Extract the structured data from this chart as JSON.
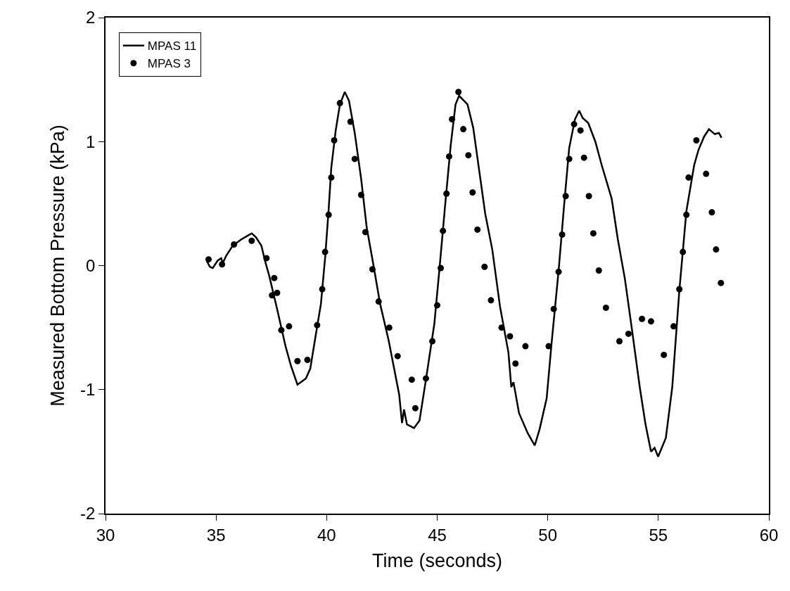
{
  "chart_data": {
    "type": "line",
    "xlabel": "Time (seconds)",
    "ylabel": "Measured Bottom Pressure (kPa)",
    "xlim": [
      30,
      60
    ],
    "xticks": [
      30,
      35,
      40,
      45,
      50,
      55,
      60
    ],
    "ylim": [
      -2,
      2
    ],
    "yticks": [
      -2,
      -1,
      0,
      1,
      2
    ],
    "legend": "top left",
    "series": [
      {
        "name": "MPAS 11",
        "color": "#000000",
        "line_style": "solid",
        "marker": "none",
        "x": [
          34.57,
          34.72,
          34.85,
          35.07,
          35.23,
          35.3,
          35.46,
          35.75,
          36.13,
          36.42,
          36.61,
          36.8,
          37.05,
          37.21,
          37.4,
          37.76,
          38.14,
          38.39,
          38.68,
          39.06,
          39.26,
          39.48,
          39.74,
          39.93,
          40.09,
          40.21,
          40.41,
          40.6,
          40.82,
          41.01,
          41.27,
          41.56,
          41.81,
          42.13,
          42.42,
          42.8,
          43.15,
          43.28,
          43.41,
          43.5,
          43.63,
          43.95,
          44.2,
          44.49,
          44.87,
          45.1,
          45.35,
          45.61,
          45.83,
          45.99,
          46.37,
          46.63,
          46.92,
          47.17,
          47.49,
          47.84,
          48.22,
          48.35,
          48.45,
          48.7,
          49.09,
          49.41,
          49.63,
          49.95,
          50.17,
          50.49,
          50.75,
          50.97,
          51.23,
          51.42,
          51.58,
          51.83,
          52.15,
          52.44,
          52.89,
          53.17,
          53.49,
          53.81,
          54.16,
          54.42,
          54.67,
          54.83,
          54.99,
          55.34,
          55.63,
          55.95,
          56.27,
          56.62,
          56.81,
          57.07,
          57.29,
          57.55,
          57.74,
          57.86
        ],
        "values": [
          0.04,
          -0.01,
          -0.02,
          0.04,
          0.06,
          0.02,
          0.08,
          0.16,
          0.21,
          0.24,
          0.26,
          0.23,
          0.16,
          0.04,
          -0.08,
          -0.35,
          -0.65,
          -0.81,
          -0.96,
          -0.91,
          -0.83,
          -0.59,
          -0.31,
          0.06,
          0.45,
          0.79,
          1.09,
          1.3,
          1.4,
          1.33,
          1.07,
          0.7,
          0.31,
          -0.01,
          -0.31,
          -0.6,
          -0.92,
          -1.04,
          -1.27,
          -1.16,
          -1.28,
          -1.31,
          -1.25,
          -0.92,
          -0.47,
          -0.03,
          0.47,
          0.97,
          1.3,
          1.37,
          1.3,
          1.11,
          0.74,
          0.42,
          0.13,
          -0.33,
          -0.7,
          -0.98,
          -0.94,
          -1.19,
          -1.35,
          -1.45,
          -1.32,
          -1.07,
          -0.63,
          -0.04,
          0.51,
          0.95,
          1.18,
          1.25,
          1.19,
          1.15,
          1.0,
          0.81,
          0.54,
          0.21,
          -0.11,
          -0.52,
          -0.98,
          -1.28,
          -1.5,
          -1.47,
          -1.54,
          -1.39,
          -0.98,
          -0.2,
          0.44,
          0.81,
          0.93,
          1.04,
          1.1,
          1.06,
          1.07,
          1.03
        ]
      },
      {
        "name": "MPAS 3",
        "type": "scatter",
        "color": "#000000",
        "marker": "circle",
        "x": [
          34.66,
          35.27,
          35.81,
          36.61,
          37.28,
          37.63,
          37.53,
          37.76,
          37.95,
          38.3,
          38.68,
          39.13,
          39.57,
          39.8,
          39.93,
          40.09,
          40.21,
          40.34,
          40.6,
          41.08,
          41.27,
          41.56,
          41.75,
          42.07,
          42.35,
          42.83,
          43.21,
          43.85,
          44.01,
          44.49,
          44.78,
          45.0,
          45.16,
          45.26,
          45.42,
          45.54,
          45.67,
          45.96,
          46.18,
          46.41,
          46.6,
          46.82,
          47.14,
          47.43,
          47.91,
          48.29,
          48.54,
          48.99,
          50.04,
          50.27,
          50.49,
          50.65,
          50.81,
          50.97,
          51.19,
          51.48,
          51.64,
          51.86,
          52.06,
          52.31,
          52.63,
          53.24,
          53.65,
          54.26,
          54.67,
          55.25,
          55.69,
          55.95,
          56.11,
          56.27,
          56.37,
          56.72,
          57.16,
          57.42,
          57.61,
          57.83
        ],
        "values": [
          0.05,
          0.01,
          0.17,
          0.2,
          0.06,
          -0.1,
          -0.24,
          -0.22,
          -0.52,
          -0.49,
          -0.77,
          -0.76,
          -0.48,
          -0.19,
          0.11,
          0.41,
          0.71,
          1.01,
          1.31,
          1.16,
          0.86,
          0.57,
          0.27,
          -0.03,
          -0.29,
          -0.5,
          -0.73,
          -0.92,
          -1.15,
          -0.91,
          -0.61,
          -0.32,
          -0.02,
          0.28,
          0.58,
          0.88,
          1.18,
          1.4,
          1.1,
          0.89,
          0.59,
          0.29,
          -0.01,
          -0.28,
          -0.5,
          -0.57,
          -0.79,
          -0.65,
          -0.65,
          -0.35,
          -0.05,
          0.25,
          0.56,
          0.86,
          1.14,
          1.09,
          0.87,
          0.56,
          0.26,
          -0.04,
          -0.34,
          -0.61,
          -0.55,
          -0.43,
          -0.45,
          -0.72,
          -0.49,
          -0.19,
          0.11,
          0.41,
          0.71,
          1.01,
          0.74,
          0.43,
          0.13,
          -0.14
        ]
      }
    ]
  }
}
